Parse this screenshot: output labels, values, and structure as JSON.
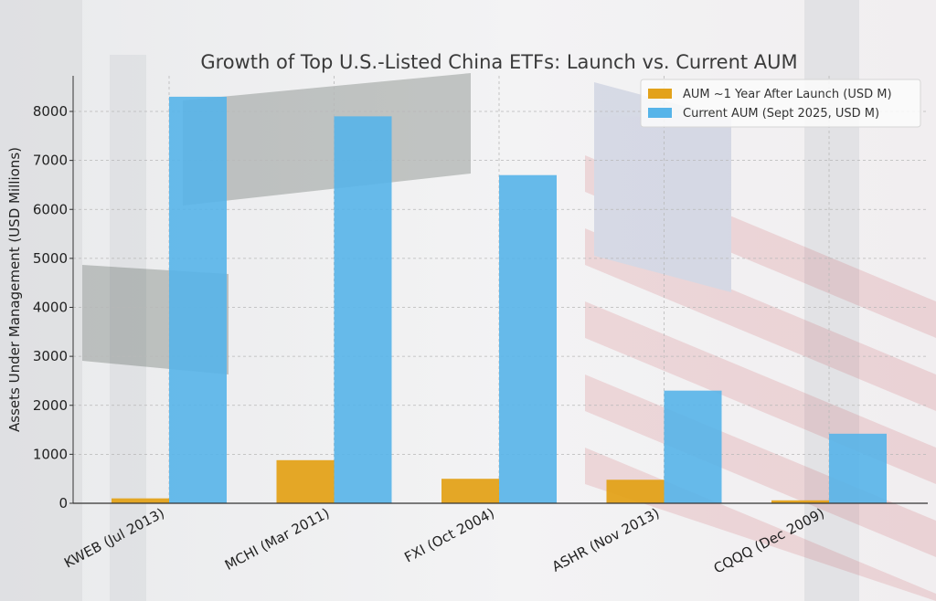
{
  "chart_data": {
    "type": "bar",
    "title": "Growth of Top U.S.-Listed China ETFs: Launch vs. Current AUM",
    "xlabel": "",
    "ylabel": "Assets Under Management (USD Millions)",
    "ylim": [
      0,
      9000
    ],
    "yticks": [
      0,
      1000,
      2000,
      3000,
      4000,
      5000,
      6000,
      7000,
      8000
    ],
    "grid": true,
    "legend_position": "top-right",
    "categories": [
      "KWEB (Jul 2013)",
      "MCHI (Mar 2011)",
      "FXI (Oct 2004)",
      "ASHR (Nov 2013)",
      "CQQQ (Dec 2009)"
    ],
    "series": [
      {
        "name": "AUM ~1 Year After Launch (USD M)",
        "color": "#e3a21a",
        "values": [
          100,
          880,
          500,
          480,
          60
        ]
      },
      {
        "name": "Current AUM (Sept 2025, USD M)",
        "color": "#56b4e9",
        "values": [
          8300,
          7900,
          6700,
          2300,
          1420
        ]
      }
    ]
  }
}
